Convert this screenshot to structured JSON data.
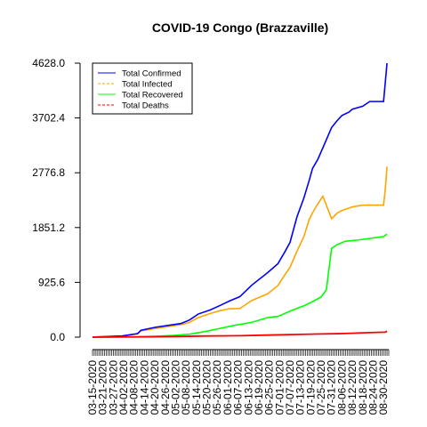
{
  "chart_data": {
    "type": "line",
    "title": "COVID-19 Congo (Brazzaville)",
    "xlabel": "",
    "ylabel": "",
    "x_range": [
      "03-15-2020",
      "09-02-2020"
    ],
    "x_tick_labels": [
      "03-15-2020",
      "03-21-2020",
      "03-27-2020",
      "04-02-2020",
      "04-08-2020",
      "04-14-2020",
      "04-20-2020",
      "04-26-2020",
      "05-02-2020",
      "05-08-2020",
      "05-14-2020",
      "05-20-2020",
      "05-26-2020",
      "06-01-2020",
      "06-07-2020",
      "06-13-2020",
      "06-19-2020",
      "06-25-2020",
      "07-01-2020",
      "07-07-2020",
      "07-13-2020",
      "07-19-2020",
      "07-25-2020",
      "07-31-2020",
      "08-06-2020",
      "08-12-2020",
      "08-18-2020",
      "08-24-2020",
      "08-30-2020"
    ],
    "y_tick_labels": [
      "0.0",
      "925.6",
      "1851.2",
      "2776.8",
      "3702.4",
      "4628.0"
    ],
    "ylim": [
      0,
      4628
    ],
    "legend_position": "top-left",
    "grid": false,
    "series": [
      {
        "name": "Total Confirmed",
        "color": "#0000ff",
        "dash": "solid",
        "points": [
          [
            "03-15-2020",
            1
          ],
          [
            "04-01-2020",
            20
          ],
          [
            "04-10-2020",
            60
          ],
          [
            "04-12-2020",
            117
          ],
          [
            "04-20-2020",
            165
          ],
          [
            "04-28-2020",
            200
          ],
          [
            "05-05-2020",
            230
          ],
          [
            "05-10-2020",
            290
          ],
          [
            "05-15-2020",
            390
          ],
          [
            "05-22-2020",
            460
          ],
          [
            "05-28-2020",
            540
          ],
          [
            "06-02-2020",
            610
          ],
          [
            "06-08-2020",
            683
          ],
          [
            "06-15-2020",
            880
          ],
          [
            "06-24-2020",
            1087
          ],
          [
            "06-30-2020",
            1240
          ],
          [
            "07-04-2020",
            1440
          ],
          [
            "07-07-2020",
            1600
          ],
          [
            "07-11-2020",
            2030
          ],
          [
            "07-15-2020",
            2350
          ],
          [
            "07-18-2020",
            2640
          ],
          [
            "07-20-2020",
            2850
          ],
          [
            "07-23-2020",
            3000
          ],
          [
            "07-26-2020",
            3200
          ],
          [
            "07-31-2020",
            3540
          ],
          [
            "08-03-2020",
            3650
          ],
          [
            "08-06-2020",
            3745
          ],
          [
            "08-10-2020",
            3800
          ],
          [
            "08-12-2020",
            3850
          ],
          [
            "08-18-2020",
            3900
          ],
          [
            "08-22-2020",
            3980
          ],
          [
            "08-30-2020",
            3980
          ],
          [
            "08-31-2020",
            4300
          ],
          [
            "09-01-2020",
            4628
          ]
        ]
      },
      {
        "name": "Total Infected",
        "color": "#ffa500",
        "dash": "dashed",
        "points": [
          [
            "03-15-2020",
            1
          ],
          [
            "04-01-2020",
            18
          ],
          [
            "04-10-2020",
            55
          ],
          [
            "04-12-2020",
            105
          ],
          [
            "04-20-2020",
            145
          ],
          [
            "04-28-2020",
            180
          ],
          [
            "05-05-2020",
            210
          ],
          [
            "05-10-2020",
            250
          ],
          [
            "05-15-2020",
            330
          ],
          [
            "05-22-2020",
            400
          ],
          [
            "05-28-2020",
            450
          ],
          [
            "06-02-2020",
            480
          ],
          [
            "06-08-2020",
            483
          ],
          [
            "06-15-2020",
            620
          ],
          [
            "06-24-2020",
            730
          ],
          [
            "06-30-2020",
            870
          ],
          [
            "07-04-2020",
            1050
          ],
          [
            "07-07-2020",
            1180
          ],
          [
            "07-11-2020",
            1450
          ],
          [
            "07-15-2020",
            1700
          ],
          [
            "07-18-2020",
            1980
          ],
          [
            "07-20-2020",
            2100
          ],
          [
            "07-23-2020",
            2250
          ],
          [
            "07-26-2020",
            2380
          ],
          [
            "07-31-2020",
            2000
          ],
          [
            "08-03-2020",
            2090
          ],
          [
            "08-06-2020",
            2140
          ],
          [
            "08-10-2020",
            2180
          ],
          [
            "08-12-2020",
            2200
          ],
          [
            "08-18-2020",
            2230
          ],
          [
            "08-22-2020",
            2230
          ],
          [
            "08-30-2020",
            2230
          ],
          [
            "08-31-2020",
            2500
          ],
          [
            "09-01-2020",
            2880
          ]
        ]
      },
      {
        "name": "Total Recovered",
        "color": "#00ff00",
        "dash": "solid",
        "points": [
          [
            "03-15-2020",
            0
          ],
          [
            "04-10-2020",
            5
          ],
          [
            "04-20-2020",
            15
          ],
          [
            "05-01-2020",
            30
          ],
          [
            "05-10-2020",
            50
          ],
          [
            "05-20-2020",
            100
          ],
          [
            "05-28-2020",
            150
          ],
          [
            "06-05-2020",
            200
          ],
          [
            "06-15-2020",
            250
          ],
          [
            "06-24-2020",
            330
          ],
          [
            "06-30-2020",
            350
          ],
          [
            "07-07-2020",
            440
          ],
          [
            "07-15-2020",
            530
          ],
          [
            "07-20-2020",
            600
          ],
          [
            "07-25-2020",
            680
          ],
          [
            "07-28-2020",
            800
          ],
          [
            "07-31-2020",
            1500
          ],
          [
            "08-03-2020",
            1560
          ],
          [
            "08-08-2020",
            1620
          ],
          [
            "08-15-2020",
            1640
          ],
          [
            "08-30-2020",
            1700
          ],
          [
            "09-01-2020",
            1740
          ]
        ]
      },
      {
        "name": "Total Deaths",
        "color": "#ff0000",
        "dash": "dashed",
        "points": [
          [
            "03-15-2020",
            0
          ],
          [
            "04-10-2020",
            5
          ],
          [
            "05-01-2020",
            10
          ],
          [
            "05-20-2020",
            20
          ],
          [
            "06-08-2020",
            25
          ],
          [
            "06-24-2020",
            35
          ],
          [
            "07-10-2020",
            45
          ],
          [
            "07-25-2020",
            55
          ],
          [
            "08-06-2020",
            60
          ],
          [
            "08-20-2020",
            75
          ],
          [
            "08-31-2020",
            85
          ],
          [
            "09-01-2020",
            100
          ]
        ]
      }
    ]
  }
}
